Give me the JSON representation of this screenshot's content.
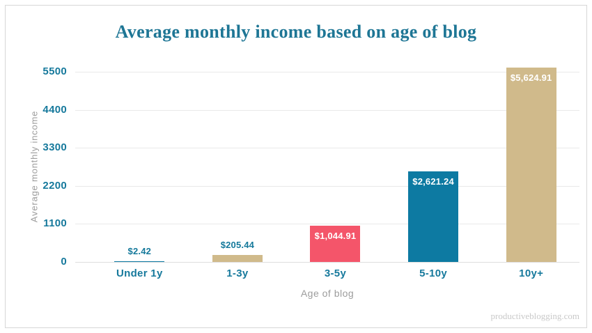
{
  "title": "Average monthly income based on age of blog",
  "watermark": "productiveblogging.com",
  "colors": {
    "title_text": "#1e7695",
    "tick_text": "#16799c",
    "axis_title_text": "#9c9c9c",
    "gridline": "#e9e9e9",
    "frame_border": "#d7d7d7",
    "bar_teal": "#0d7aa2",
    "bar_tan": "#d0ba8b",
    "bar_red": "#f4556a",
    "value_label_outside": "#15799b",
    "value_label_inside": "#ffffff"
  },
  "chart_data": {
    "type": "bar",
    "title": "Average monthly income based on age of blog",
    "xlabel": "Age of blog",
    "ylabel": "Average monthly income",
    "categories": [
      "Under 1y",
      "1-3y",
      "3-5y",
      "5-10y",
      "10y+"
    ],
    "values": [
      2.42,
      205.44,
      1044.91,
      2621.24,
      5624.91
    ],
    "value_labels": [
      "$2.42",
      "$205.44",
      "$1,044.91",
      "$2,621.24",
      "$5,624.91"
    ],
    "bar_colors": [
      "#0d7aa2",
      "#d0ba8b",
      "#f4556a",
      "#0d7aa2",
      "#d0ba8b"
    ],
    "label_placement": [
      "outside",
      "outside",
      "inside",
      "inside",
      "inside"
    ],
    "y_ticks": [
      0,
      1100,
      2200,
      3300,
      4400,
      5500
    ],
    "ylim": [
      0,
      5500
    ],
    "grid": true,
    "legend": "none"
  }
}
